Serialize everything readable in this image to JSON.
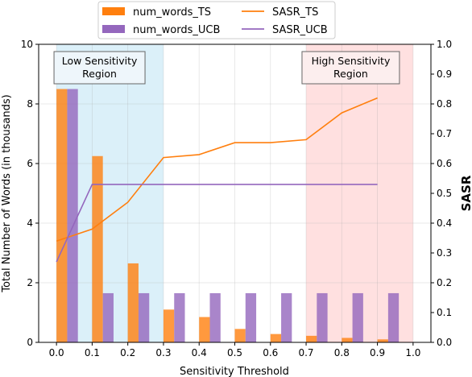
{
  "chart_data": {
    "type": "bar",
    "xlabel": "Sensitivity Threshold",
    "ylabel_left": "Total Number of Words (in thousands)",
    "ylabel_right": "SASR",
    "xlim": [
      -0.05,
      1.05
    ],
    "ylim_left": [
      0,
      10
    ],
    "ylim_right": [
      0,
      1.0
    ],
    "x_ticks": [
      "0.0",
      "0.1",
      "0.2",
      "0.3",
      "0.4",
      "0.5",
      "0.6",
      "0.7",
      "0.8",
      "0.9",
      "1.0"
    ],
    "y_left_ticks": [
      "0",
      "2",
      "4",
      "6",
      "8",
      "10"
    ],
    "y_right_ticks": [
      "0.0",
      "0.1",
      "0.2",
      "0.3",
      "0.4",
      "0.5",
      "0.6",
      "0.7",
      "0.8",
      "0.9",
      "1.0"
    ],
    "grid": true,
    "legend_placement": "top-center, outside plot",
    "x": [
      0.0,
      0.1,
      0.2,
      0.3,
      0.4,
      0.5,
      0.6,
      0.7,
      0.8,
      0.9
    ],
    "series": [
      {
        "name": "num_words_TS",
        "kind": "bar",
        "axis": "left",
        "color": "#ff7f0e",
        "values": [
          8.5,
          6.25,
          2.65,
          1.1,
          0.85,
          0.45,
          0.28,
          0.22,
          0.15,
          0.1
        ]
      },
      {
        "name": "num_words_UCB",
        "kind": "bar",
        "axis": "left",
        "color": "#9467bd",
        "values": [
          8.5,
          1.65,
          1.65,
          1.65,
          1.65,
          1.65,
          1.65,
          1.65,
          1.65,
          1.65
        ]
      },
      {
        "name": "SASR_TS",
        "kind": "line",
        "axis": "right",
        "color": "#ff7f0e",
        "values": [
          0.34,
          0.38,
          0.47,
          0.62,
          0.63,
          0.67,
          0.67,
          0.68,
          0.77,
          0.82
        ]
      },
      {
        "name": "SASR_UCB",
        "kind": "line",
        "axis": "right",
        "color": "#9467bd",
        "values": [
          0.27,
          0.53,
          0.53,
          0.53,
          0.53,
          0.53,
          0.53,
          0.53,
          0.53,
          0.53
        ]
      }
    ],
    "regions": [
      {
        "label_lines": [
          "Low Sensitivity",
          "Region"
        ],
        "x_range": [
          0.0,
          0.3
        ],
        "color": "#87ceeb"
      },
      {
        "label_lines": [
          "High Sensitivity",
          "Region"
        ],
        "x_range": [
          0.7,
          1.0
        ],
        "color": "#ff9999"
      }
    ]
  }
}
